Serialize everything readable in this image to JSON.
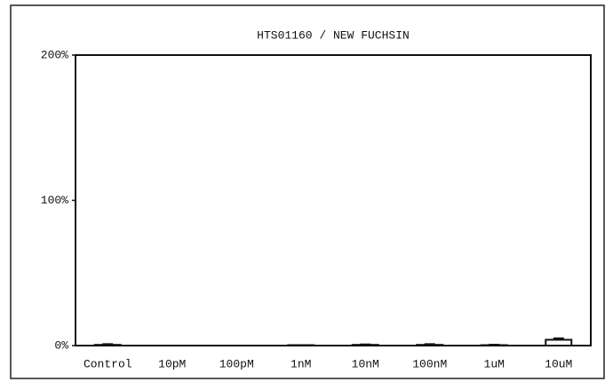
{
  "chart_data": {
    "type": "bar",
    "title": "HTS01160 / NEW FUCHSIN",
    "categories": [
      "Control",
      "10pM",
      "100pM",
      "1nM",
      "10nM",
      "100nM",
      "1uM",
      "10uM"
    ],
    "values": [
      0.5,
      0,
      0,
      0.3,
      0.5,
      0.5,
      0.3,
      4
    ],
    "errors": [
      0.5,
      0,
      0,
      0,
      0.3,
      0.5,
      0.3,
      1
    ],
    "color": "#ffffff",
    "ylim": [
      0,
      200
    ],
    "yticks": [
      {
        "value": 0,
        "label": "0%"
      },
      {
        "value": 100,
        "label": "100%"
      },
      {
        "value": 200,
        "label": "200%"
      }
    ],
    "grid": false
  }
}
